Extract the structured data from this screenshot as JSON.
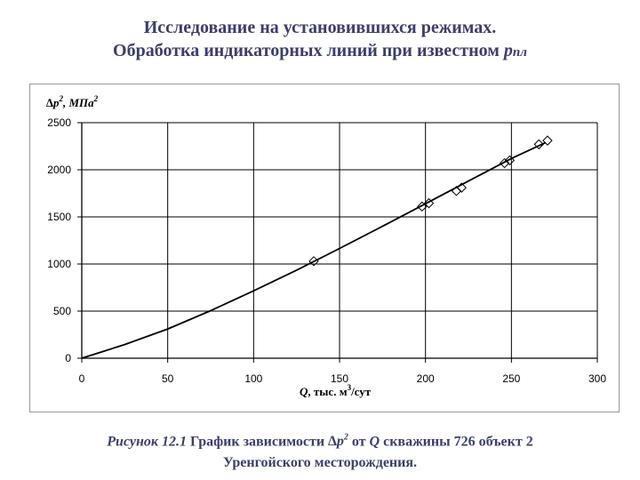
{
  "slide": {
    "title_line1": "Исследование на установившихся режимах.",
    "title_line2": "Обработка индикаторных линий при известном",
    "title_var": "p",
    "title_sub": "пл"
  },
  "caption": {
    "fig_label": "Рисунок 12.1",
    "text_a": "График зависимости",
    "delta": "∆",
    "p": "p",
    "sup2": "2",
    "text_b": "от",
    "q": "Q",
    "text_c": "скважины 726 объект 2",
    "line2": "Уренгойского месторождения."
  },
  "chart_data": {
    "type": "scatter",
    "ylabel_parts": {
      "delta": "∆",
      "p": "p",
      "sup": "2",
      "unit": ", МПа",
      "unit_sup": "2"
    },
    "xlabel_parts": {
      "q": "Q",
      "unit": ", тыс. м",
      "unit_sup": "3",
      "tail": "/сут"
    },
    "xlim": [
      0,
      300
    ],
    "ylim": [
      0,
      2500
    ],
    "xticks": [
      0,
      50,
      100,
      150,
      200,
      250,
      300
    ],
    "yticks": [
      0,
      500,
      1000,
      1500,
      2000,
      2500
    ],
    "grid": true,
    "series": [
      {
        "marker": "diamond",
        "x": [
          135,
          198,
          202,
          218,
          221,
          246,
          249,
          266,
          271
        ],
        "y": [
          1030,
          1610,
          1645,
          1775,
          1810,
          2070,
          2100,
          2270,
          2310
        ]
      }
    ],
    "trendline": {
      "x": [
        0,
        25,
        50,
        75,
        100,
        125,
        150,
        175,
        200,
        225,
        250,
        270
      ],
      "y": [
        0,
        145,
        310,
        505,
        715,
        935,
        1165,
        1400,
        1640,
        1880,
        2120,
        2290
      ]
    }
  }
}
